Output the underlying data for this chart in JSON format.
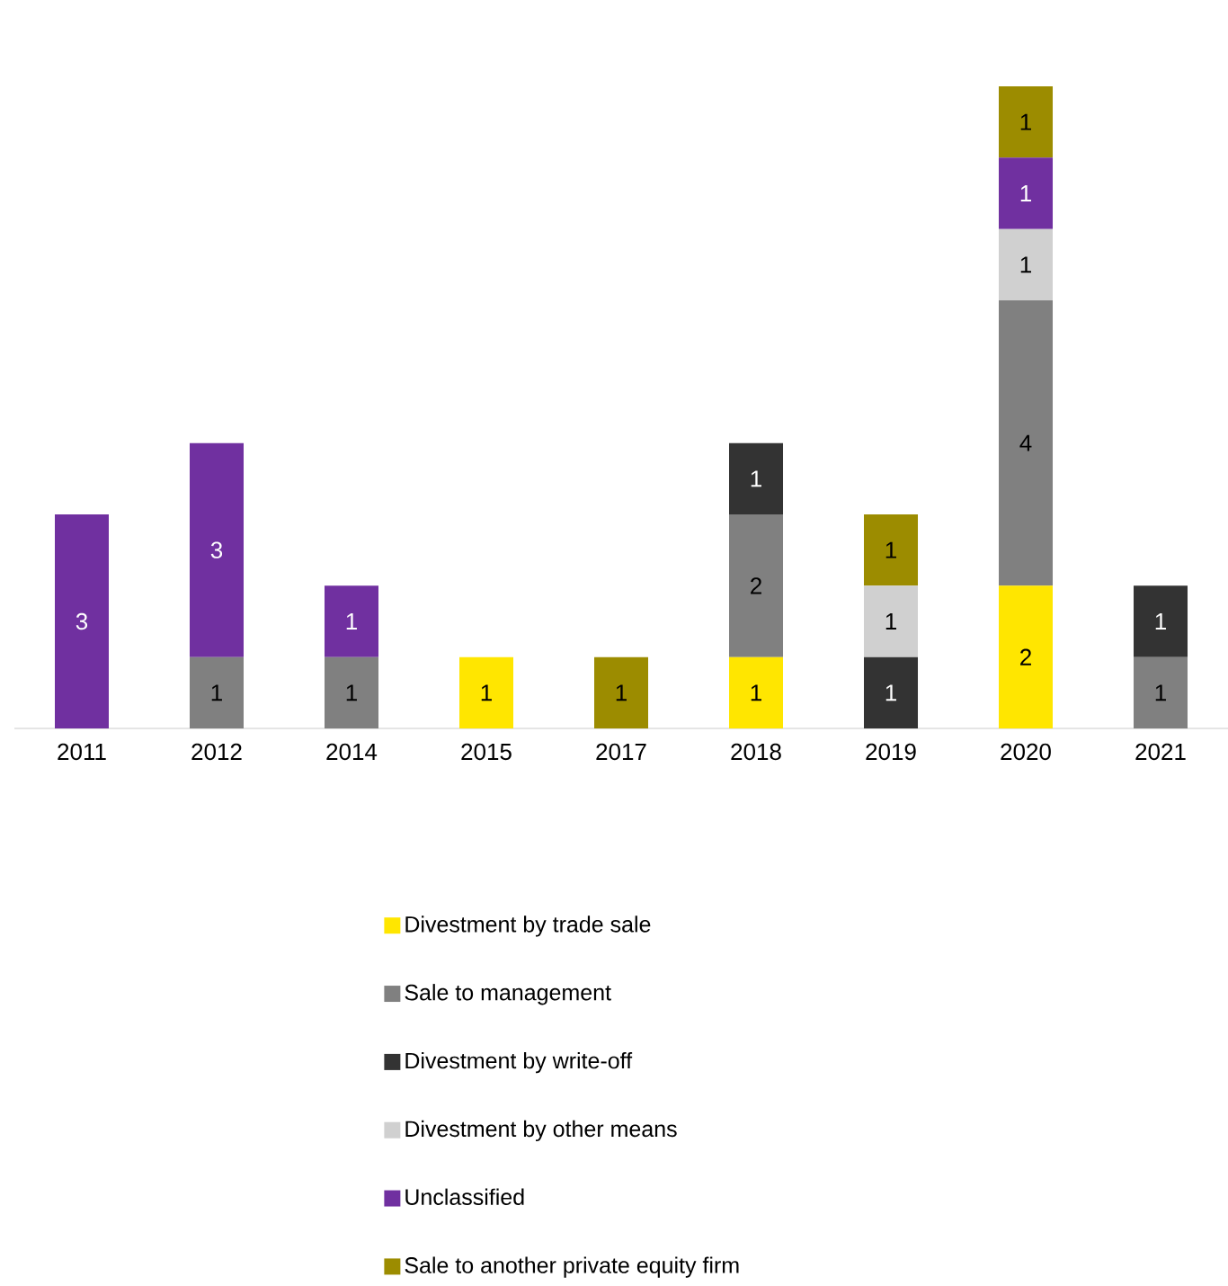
{
  "chart_data": {
    "type": "bar",
    "stacked": true,
    "data_labels": true,
    "legend": "bottom",
    "categories": [
      "2011",
      "2012",
      "2014",
      "2015",
      "2017",
      "2018",
      "2019",
      "2020",
      "2021"
    ],
    "series": [
      {
        "name": "Divestment by trade sale",
        "color": "#ffe600",
        "values": [
          null,
          null,
          null,
          1,
          null,
          1,
          null,
          2,
          null
        ]
      },
      {
        "name": "Sale to management",
        "color": "#808080",
        "values": [
          null,
          1,
          1,
          null,
          null,
          2,
          null,
          4,
          1
        ]
      },
      {
        "name": "Divestment by write-off",
        "color": "#333333",
        "values": [
          null,
          null,
          null,
          null,
          null,
          1,
          1,
          null,
          1
        ]
      },
      {
        "name": "Divestment by other means",
        "color": "#d0d0d0",
        "values": [
          null,
          null,
          null,
          null,
          null,
          null,
          1,
          1,
          null
        ]
      },
      {
        "name": "Unclassified",
        "color": "#7030a0",
        "values": [
          3,
          3,
          1,
          null,
          null,
          null,
          null,
          1,
          null
        ]
      },
      {
        "name": "Sale to another private equity firm",
        "color": "#9c8c00",
        "values": [
          null,
          null,
          null,
          null,
          1,
          null,
          1,
          1,
          null
        ]
      }
    ]
  }
}
